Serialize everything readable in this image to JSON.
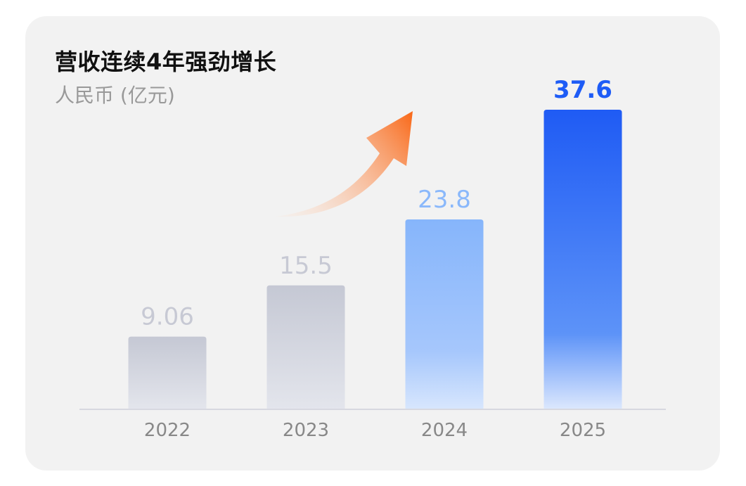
{
  "chart_data": {
    "type": "bar",
    "title": "营收连续4年强劲增长",
    "subtitle": "人民币 (亿元)",
    "categories": [
      "2022",
      "2023",
      "2024",
      "2025"
    ],
    "values": [
      9.06,
      15.5,
      23.8,
      37.6
    ],
    "value_labels": [
      "9.06",
      "15.5",
      "23.8",
      "37.6"
    ],
    "ylim": [
      0,
      37.6
    ],
    "grid": false,
    "legend": "none",
    "annotation": "upward-arrow",
    "colors": {
      "gray_top": "#c5c8d4",
      "gray_bottom": "#e3e5ec",
      "gray_label": "#c7c9d4",
      "light_blue_top": "#86b5fb",
      "light_blue_bottom": "#d7e6fd",
      "light_blue_label": "#8ab8fb",
      "blue_top": "#1f5bf4",
      "blue_bottom": "#dbe7fd",
      "blue_label": "#1e5cf6",
      "arrow_start": "#fde3d2",
      "arrow_end": "#f96a1b",
      "axis_line": "#d7d8e0",
      "tick_label": "#888888"
    }
  }
}
